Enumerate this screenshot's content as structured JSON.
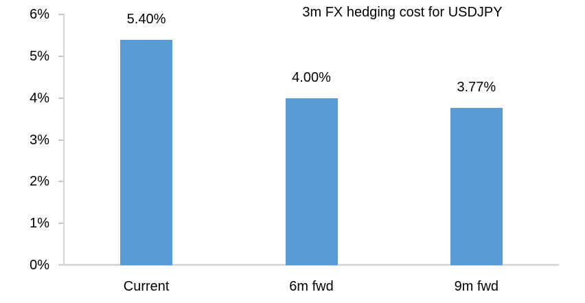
{
  "chart_data": {
    "type": "bar",
    "title": "3m FX hedging cost for USDJPY",
    "categories": [
      "Current",
      "6m fwd",
      "9m fwd"
    ],
    "values": [
      5.4,
      4.0,
      3.77
    ],
    "value_labels": [
      "5.40%",
      "4.00%",
      "3.77%"
    ],
    "xlabel": "",
    "ylabel": "",
    "ylim": [
      0,
      6
    ],
    "yticks": [
      0,
      1,
      2,
      3,
      4,
      5,
      6
    ],
    "ytick_labels": [
      "0%",
      "1%",
      "2%",
      "3%",
      "4%",
      "5%",
      "6%"
    ],
    "grid": false,
    "legend": false,
    "bar_color": "#5B9BD5",
    "axis_color": "#D9D9D9",
    "tick_color": "#C6C6C6",
    "text_color": "#000000"
  }
}
